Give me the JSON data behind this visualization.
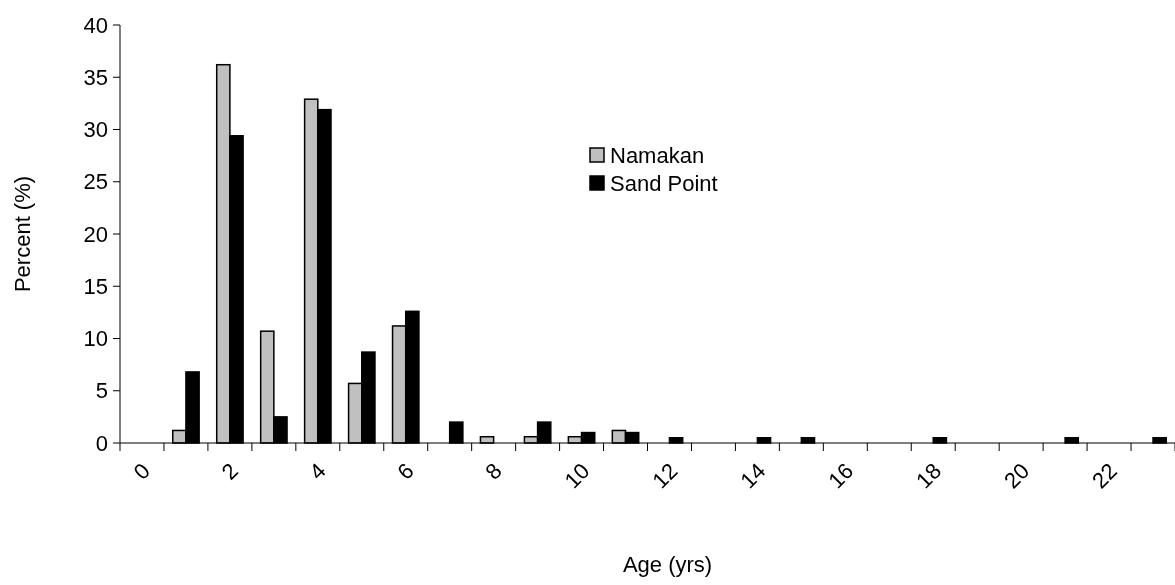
{
  "chart_data": {
    "type": "bar",
    "xlabel": "Age (yrs)",
    "ylabel": "Percent (%)",
    "categories": [
      "0",
      null,
      "2",
      null,
      "4",
      null,
      "6",
      null,
      "8",
      null,
      "10",
      null,
      "12",
      null,
      "14",
      null,
      "16",
      null,
      "18",
      null,
      "20",
      null,
      "22",
      null
    ],
    "series": [
      {
        "name": "Namakan",
        "color": "#c0c0c0",
        "values": [
          0,
          1.2,
          36.2,
          10.7,
          32.9,
          5.7,
          11.2,
          0,
          0.6,
          0.6,
          0.6,
          1.2,
          0,
          0,
          0,
          0,
          0,
          0,
          0,
          0,
          0,
          0,
          0,
          0
        ]
      },
      {
        "name": "Sand Point",
        "color": "#000000",
        "values": [
          0,
          6.8,
          29.4,
          2.5,
          31.9,
          8.7,
          12.6,
          2.0,
          0,
          2.0,
          1.0,
          1.0,
          0.5,
          0,
          0.5,
          0.5,
          0,
          0,
          0.5,
          0,
          0,
          0.5,
          0,
          0.5
        ]
      }
    ],
    "ylim": [
      0,
      40
    ],
    "yticks": [
      0,
      5,
      10,
      15,
      20,
      25,
      30,
      35,
      40
    ],
    "legend": "top right"
  }
}
